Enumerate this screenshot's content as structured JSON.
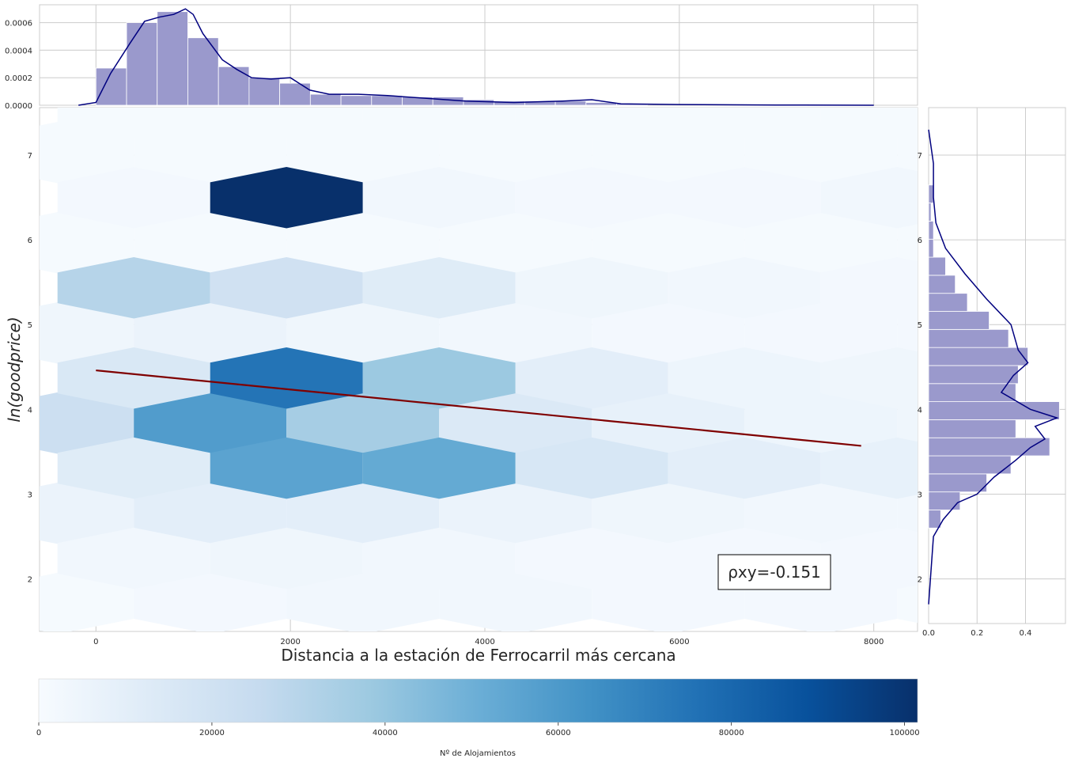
{
  "chart_data": {
    "type": "hexbin",
    "xlabel": "Distancia a la estación de Ferrocarril más cercana",
    "ylabel": "ln(goodprice)",
    "xlim": [
      -580,
      8450
    ],
    "ylim": [
      1.38,
      7.56
    ],
    "xticks": [
      0,
      2000,
      4000,
      6000,
      8000
    ],
    "yticks": [
      2,
      3,
      4,
      5,
      6,
      7
    ],
    "grid": true,
    "regression_line": {
      "x": [
        0,
        7870
      ],
      "y": [
        4.46,
        3.57
      ],
      "color": "#7f0000"
    },
    "annotation": "ρxy=-0.151",
    "hexbin": {
      "x_spacing": 1570,
      "y_spacing": 0.532,
      "x_left": -395,
      "y_bottom": 1.71,
      "cells_even_rows": [
        [
          0.01,
          0.02,
          0.03,
          0.03,
          0.02,
          0.02,
          0.01,
          0.01,
          0.01,
          0.01,
          0.01,
          0.01
        ],
        [
          0.06,
          0.1,
          0.1,
          0.06,
          0.04,
          0.03,
          0.03,
          0.02,
          0.02,
          0.02,
          0.02
        ],
        [
          0.22,
          0.58,
          0.35,
          0.14,
          0.08,
          0.05,
          0.04,
          0.03,
          0.03,
          0.02,
          0.02
        ],
        [
          0.04,
          0.06,
          0.04,
          0.03,
          0.02,
          0.02,
          0.02,
          0.01,
          0.01,
          0.01,
          0.01
        ],
        [
          0.01,
          0.01,
          0.01,
          0.01,
          0.01,
          0.01,
          0.01,
          0.01,
          0.01,
          0.01,
          0.01,
          0.01
        ],
        [
          0.01,
          0.01,
          0.01,
          0.01,
          0.01,
          0.01,
          0.01,
          0.01,
          0.01,
          0.01,
          0.01,
          0.01
        ]
      ],
      "cells_odd_rows": [
        [
          0.03,
          0.04,
          0.03,
          0.02,
          0.02,
          0.02,
          0.01,
          0.01,
          0.01,
          0.01,
          0.01
        ],
        [
          0.12,
          0.55,
          0.52,
          0.16,
          0.1,
          0.08,
          0.06,
          0.06,
          0.04,
          0.03,
          0.02
        ],
        [
          0.15,
          0.74,
          0.38,
          0.1,
          0.05,
          0.04,
          0.03,
          0.03,
          0.02,
          0.02,
          0.01
        ],
        [
          0.3,
          0.2,
          0.12,
          0.04,
          0.03,
          0.02,
          0.02,
          0.01,
          0.01,
          0.01,
          0.01
        ],
        [
          0.02,
          0.04,
          0.03,
          0.02,
          0.02,
          0.03,
          0.02,
          0.01,
          0.01,
          0.01,
          0.01
        ],
        [
          0.01,
          0.01,
          0.01,
          0.01,
          0.01,
          0.01,
          0.01,
          0.01,
          0.01,
          0.01,
          0.01
        ]
      ],
      "special_cells": [
        {
          "row": 4,
          "col": 1,
          "value": 1.0
        }
      ]
    },
    "top_marginal": {
      "type": "histogram_kde",
      "bin_width": 315,
      "bin_start": 0,
      "values": [
        0.00027,
        0.0006,
        0.00068,
        0.00049,
        0.00028,
        0.0002,
        0.00016,
        8e-05,
        7e-05,
        7e-05,
        6e-05,
        6e-05,
        4e-05,
        3e-05,
        3e-05,
        3e-05,
        2e-05,
        1e-05
      ],
      "yticks": [
        "0.0000",
        "0.0002",
        "0.0004",
        "0.0006"
      ],
      "ylim": [
        0,
        0.00073
      ],
      "kde_x": [
        -180,
        0,
        150,
        350,
        500,
        650,
        800,
        920,
        1000,
        1100,
        1300,
        1450,
        1600,
        1800,
        2000,
        2200,
        2400,
        2700,
        3000,
        3400,
        3800,
        4300,
        4800,
        5100,
        5400,
        6000,
        7000,
        8000
      ],
      "kde_y": [
        0,
        2e-05,
        0.00023,
        0.00045,
        0.00061,
        0.00064,
        0.00066,
        0.0007,
        0.00066,
        0.00052,
        0.00033,
        0.00026,
        0.0002,
        0.00019,
        0.0002,
        0.00011,
        8e-05,
        8e-05,
        7e-05,
        5e-05,
        3e-05,
        2e-05,
        3e-05,
        4e-05,
        1e-05,
        5e-06,
        2e-06,
        0
      ]
    },
    "right_marginal": {
      "type": "histogram_kde",
      "bin_height": 0.213,
      "bin_start": 2.6,
      "values": [
        0.05,
        0.13,
        0.24,
        0.34,
        0.5,
        0.36,
        0.54,
        0.36,
        0.37,
        0.41,
        0.33,
        0.25,
        0.16,
        0.11,
        0.07,
        0.02,
        0.02,
        0.01,
        0.02
      ],
      "xticks": [
        "0.0",
        "0.2",
        "0.4"
      ],
      "xlim": [
        0,
        0.565
      ],
      "kde_y": [
        1.7,
        2.5,
        2.7,
        2.9,
        3.0,
        3.2,
        3.4,
        3.55,
        3.65,
        3.8,
        3.9,
        4.0,
        4.2,
        4.4,
        4.55,
        4.7,
        5.0,
        5.3,
        5.6,
        5.9,
        6.2,
        6.5,
        6.9,
        7.3
      ],
      "kde_x": [
        0,
        0.02,
        0.06,
        0.12,
        0.2,
        0.27,
        0.36,
        0.42,
        0.48,
        0.44,
        0.53,
        0.42,
        0.3,
        0.35,
        0.41,
        0.37,
        0.34,
        0.24,
        0.15,
        0.07,
        0.03,
        0.02,
        0.02,
        0
      ]
    },
    "colorbar": {
      "label": "Nº de Alojamientos",
      "ticks": [
        "0",
        "20000",
        "40000",
        "60000",
        "80000",
        "100000"
      ],
      "range": [
        0,
        101500
      ]
    }
  },
  "colors": {
    "hist_fill": "#9a99cc",
    "kde_line": "#00007f",
    "grid": "#cccccc",
    "axis": "#bfbfbf"
  }
}
